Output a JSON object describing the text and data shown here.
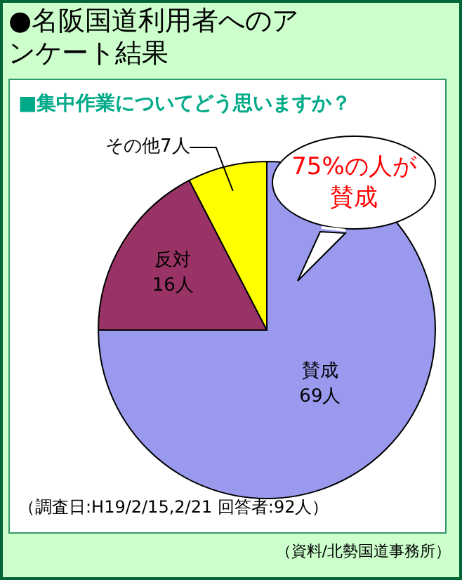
{
  "chart_data": {
    "type": "pie",
    "title": "●名阪国道利用者へのアンケート結果",
    "subtitle": "■集中作業についてどう思いますか？",
    "categories": [
      "賛成",
      "反対",
      "その他"
    ],
    "values": [
      69,
      16,
      7
    ],
    "value_labels": [
      "69人",
      "16人",
      "7人"
    ],
    "colors": [
      "#9999ee",
      "#993366",
      "#ffff00"
    ],
    "annotations": [
      "75%の人が賛成",
      "（調査日:H19/2/15,2/21 回答者:92人）",
      "（資料/北勢国道事務所）"
    ]
  }
}
